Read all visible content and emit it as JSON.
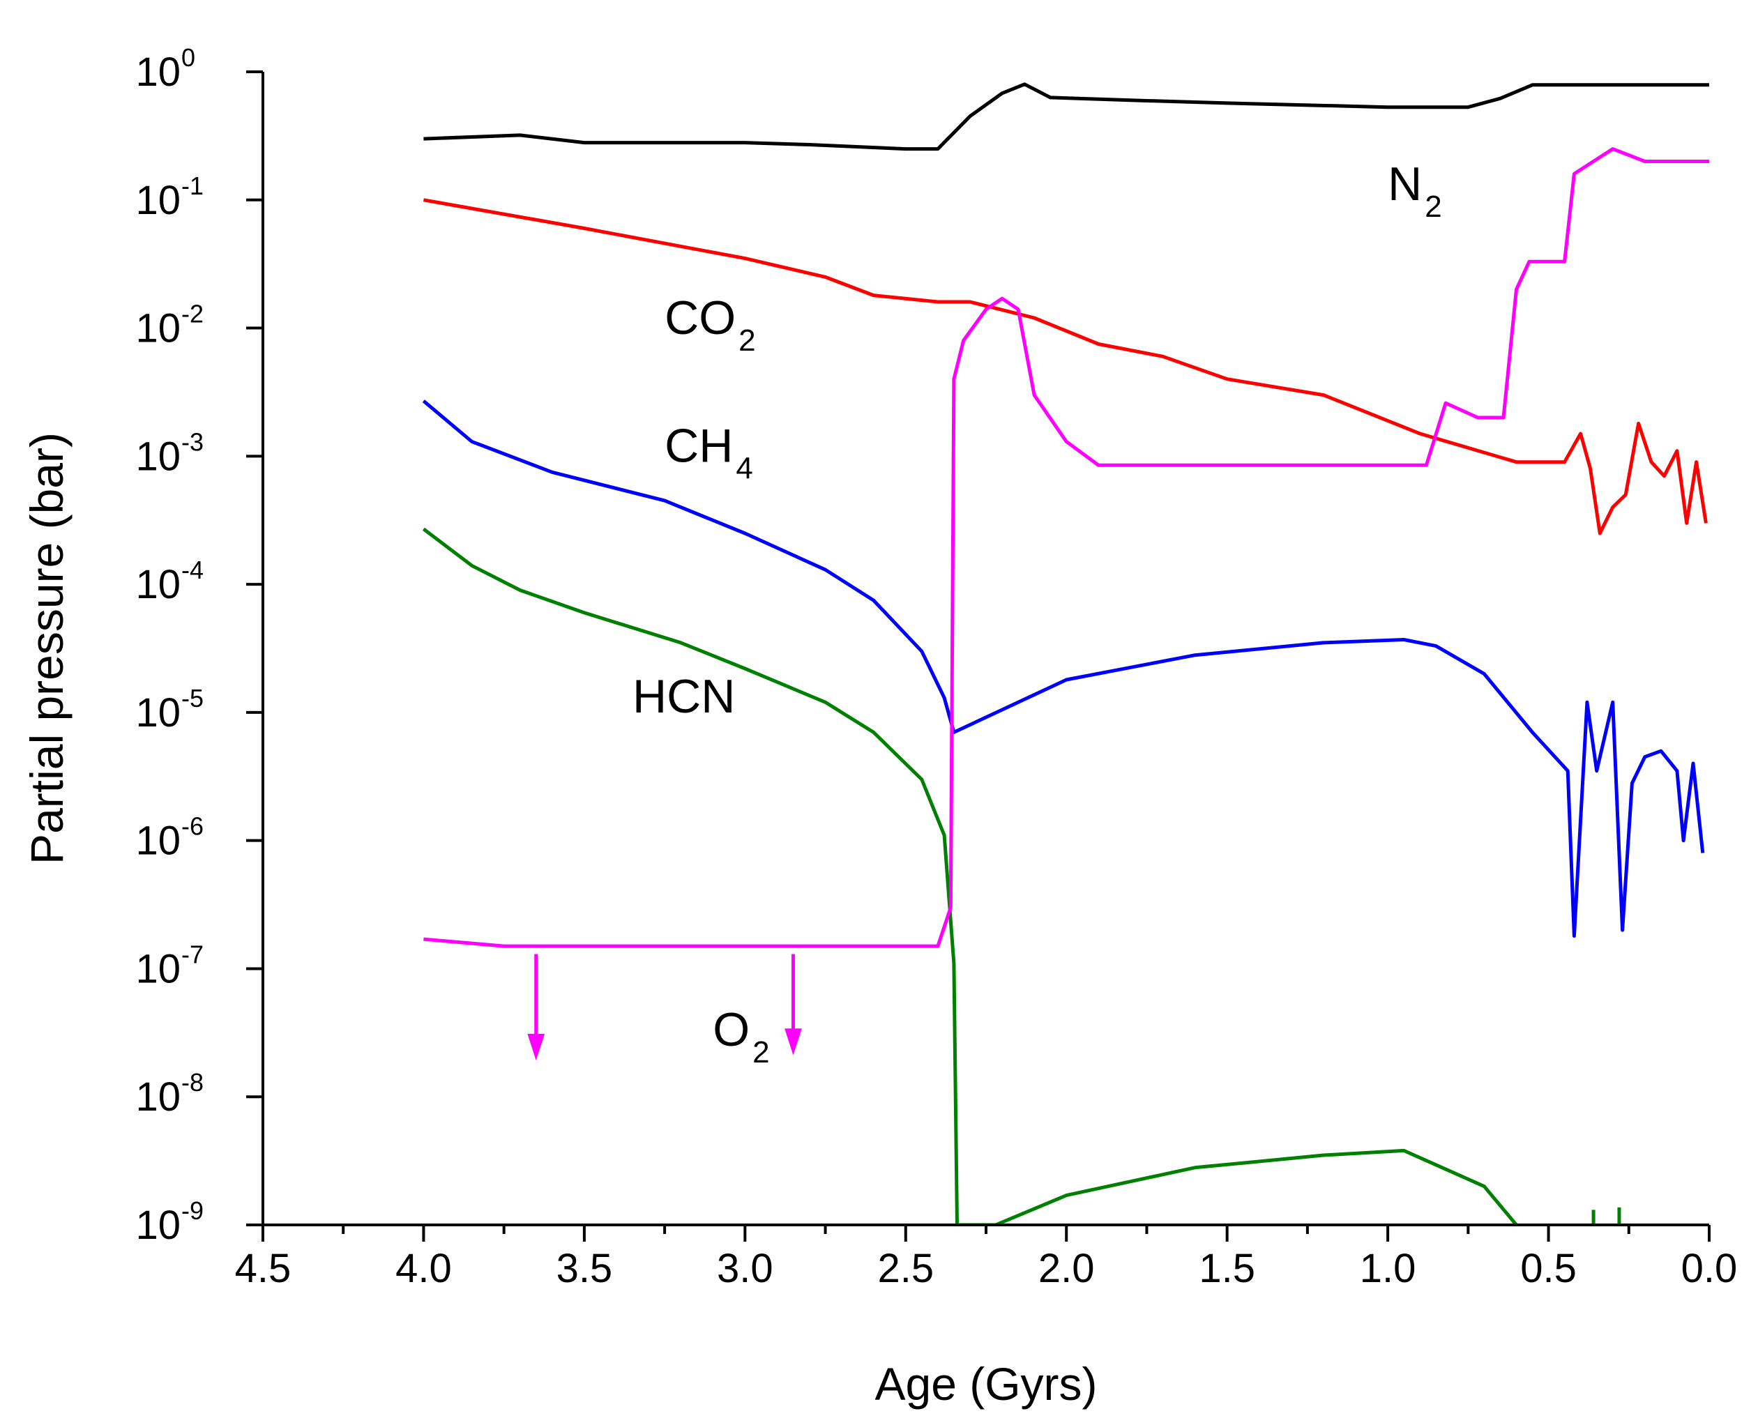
{
  "chart_data": {
    "type": "line",
    "title": "",
    "xlabel": "Age (Gyrs)",
    "ylabel": "Partial pressure (bar)",
    "xlim": [
      4.5,
      0.0
    ],
    "ylim": [
      1e-09,
      1
    ],
    "yscale": "log",
    "grid": false,
    "x_ticks": [
      {
        "value": 4.5,
        "label": "4.5"
      },
      {
        "value": 4.0,
        "label": "4.0"
      },
      {
        "value": 3.5,
        "label": "3.5"
      },
      {
        "value": 3.0,
        "label": "3.0"
      },
      {
        "value": 2.5,
        "label": "2.5"
      },
      {
        "value": 2.0,
        "label": "2.0"
      },
      {
        "value": 1.5,
        "label": "1.5"
      },
      {
        "value": 1.0,
        "label": "1.0"
      },
      {
        "value": 0.5,
        "label": "0.5"
      },
      {
        "value": 0.0,
        "label": "0.0"
      }
    ],
    "y_ticks": [
      {
        "exp": 0,
        "base": "10",
        "exponent": "0"
      },
      {
        "exp": -1,
        "base": "10",
        "exponent": "-1"
      },
      {
        "exp": -2,
        "base": "10",
        "exponent": "-2"
      },
      {
        "exp": -3,
        "base": "10",
        "exponent": "-3"
      },
      {
        "exp": -4,
        "base": "10",
        "exponent": "-4"
      },
      {
        "exp": -5,
        "base": "10",
        "exponent": "-5"
      },
      {
        "exp": -6,
        "base": "10",
        "exponent": "-6"
      },
      {
        "exp": -7,
        "base": "10",
        "exponent": "-7"
      },
      {
        "exp": -8,
        "base": "10",
        "exponent": "-8"
      },
      {
        "exp": -9,
        "base": "10",
        "exponent": "-9"
      }
    ],
    "series": [
      {
        "name": "N2",
        "label_main": "N",
        "label_sub": "2",
        "color": "#000000",
        "label_pos": {
          "x": 1.0,
          "y": 0.1
        },
        "points": [
          [
            4.0,
            0.3
          ],
          [
            3.7,
            0.32
          ],
          [
            3.5,
            0.28
          ],
          [
            3.0,
            0.28
          ],
          [
            2.8,
            0.27
          ],
          [
            2.5,
            0.25
          ],
          [
            2.4,
            0.25
          ],
          [
            2.3,
            0.45
          ],
          [
            2.2,
            0.68
          ],
          [
            2.13,
            0.8
          ],
          [
            2.05,
            0.63
          ],
          [
            1.8,
            0.6
          ],
          [
            1.5,
            0.57
          ],
          [
            1.0,
            0.53
          ],
          [
            0.75,
            0.53
          ],
          [
            0.65,
            0.62
          ],
          [
            0.55,
            0.79
          ],
          [
            0.0,
            0.79
          ]
        ]
      },
      {
        "name": "CO2",
        "label_main": "CO",
        "label_sub": "2",
        "color": "#ff0000",
        "label_pos": {
          "x": 3.25,
          "y": 0.009
        },
        "points": [
          [
            4.0,
            0.1
          ],
          [
            3.5,
            0.06
          ],
          [
            3.0,
            0.035
          ],
          [
            2.75,
            0.025
          ],
          [
            2.6,
            0.018
          ],
          [
            2.4,
            0.016
          ],
          [
            2.3,
            0.016
          ],
          [
            2.1,
            0.012
          ],
          [
            1.9,
            0.0075
          ],
          [
            1.7,
            0.006
          ],
          [
            1.5,
            0.004
          ],
          [
            1.2,
            0.003
          ],
          [
            0.9,
            0.0015
          ],
          [
            0.6,
            0.0009
          ],
          [
            0.45,
            0.0009
          ],
          [
            0.4,
            0.0015
          ],
          [
            0.37,
            0.0008
          ],
          [
            0.34,
            0.00025
          ],
          [
            0.3,
            0.0004
          ],
          [
            0.26,
            0.0005
          ],
          [
            0.22,
            0.0018
          ],
          [
            0.18,
            0.0009
          ],
          [
            0.14,
            0.0007
          ],
          [
            0.1,
            0.0011
          ],
          [
            0.07,
            0.0003
          ],
          [
            0.04,
            0.0009
          ],
          [
            0.01,
            0.0003
          ]
        ]
      },
      {
        "name": "CH4",
        "label_main": "CH",
        "label_sub": "4",
        "color": "#0000ff",
        "label_pos": {
          "x": 3.25,
          "y": 0.0009
        },
        "points": [
          [
            4.0,
            0.0027
          ],
          [
            3.85,
            0.0013
          ],
          [
            3.6,
            0.00075
          ],
          [
            3.25,
            0.00045
          ],
          [
            3.0,
            0.00025
          ],
          [
            2.75,
            0.00013
          ],
          [
            2.6,
            7.5e-05
          ],
          [
            2.45,
            3e-05
          ],
          [
            2.38,
            1.3e-05
          ],
          [
            2.35,
            7e-06
          ],
          [
            2.0,
            1.8e-05
          ],
          [
            1.6,
            2.8e-05
          ],
          [
            1.2,
            3.5e-05
          ],
          [
            0.95,
            3.7e-05
          ],
          [
            0.85,
            3.3e-05
          ],
          [
            0.7,
            2e-05
          ],
          [
            0.55,
            7e-06
          ],
          [
            0.44,
            3.5e-06
          ],
          [
            0.42,
            1.8e-07
          ],
          [
            0.38,
            1.2e-05
          ],
          [
            0.35,
            3.5e-06
          ],
          [
            0.3,
            1.2e-05
          ],
          [
            0.27,
            2e-07
          ],
          [
            0.24,
            2.8e-06
          ],
          [
            0.2,
            4.5e-06
          ],
          [
            0.15,
            5e-06
          ],
          [
            0.1,
            3.5e-06
          ],
          [
            0.08,
            1e-06
          ],
          [
            0.05,
            4e-06
          ],
          [
            0.02,
            8e-07
          ]
        ]
      },
      {
        "name": "HCN",
        "label_main": "HCN",
        "label_sub": "",
        "color": "#008000",
        "label_pos": {
          "x": 3.35,
          "y": 1e-05
        },
        "points": [
          [
            4.0,
            0.00027
          ],
          [
            3.85,
            0.00014
          ],
          [
            3.7,
            9e-05
          ],
          [
            3.5,
            6e-05
          ],
          [
            3.2,
            3.5e-05
          ],
          [
            3.0,
            2.2e-05
          ],
          [
            2.75,
            1.2e-05
          ],
          [
            2.6,
            7e-06
          ],
          [
            2.45,
            3e-06
          ],
          [
            2.38,
            1.1e-06
          ],
          [
            2.35,
            1.1e-07
          ],
          [
            2.34,
            1e-09
          ],
          [
            2.22,
            1e-09
          ],
          [
            2.0,
            1.7e-09
          ],
          [
            1.6,
            2.8e-09
          ],
          [
            1.2,
            3.5e-09
          ],
          [
            0.95,
            3.8e-09
          ],
          [
            0.7,
            2e-09
          ],
          [
            0.6,
            1e-09
          ]
        ]
      },
      {
        "name": "O2",
        "label_main": "O",
        "label_sub": "2",
        "color": "#ff00ff",
        "label_pos": {
          "x": 3.1,
          "y": 2.5e-08
        },
        "points": [
          [
            4.0,
            1.7e-07
          ],
          [
            3.75,
            1.5e-07
          ],
          [
            2.4,
            1.5e-07
          ],
          [
            2.36,
            3e-07
          ],
          [
            2.35,
            0.004
          ],
          [
            2.32,
            0.008
          ],
          [
            2.25,
            0.014
          ],
          [
            2.2,
            0.017
          ],
          [
            2.15,
            0.014
          ],
          [
            2.1,
            0.003
          ],
          [
            2.0,
            0.0013
          ],
          [
            1.9,
            0.00085
          ],
          [
            1.75,
            0.00085
          ],
          [
            1.0,
            0.00085
          ],
          [
            0.88,
            0.00085
          ],
          [
            0.82,
            0.0026
          ],
          [
            0.72,
            0.002
          ],
          [
            0.64,
            0.002
          ],
          [
            0.6,
            0.02
          ],
          [
            0.56,
            0.033
          ],
          [
            0.45,
            0.033
          ],
          [
            0.42,
            0.16
          ],
          [
            0.3,
            0.25
          ],
          [
            0.2,
            0.2
          ],
          [
            0.0,
            0.2
          ]
        ]
      }
    ],
    "annotations": [
      {
        "type": "upper-limit-arrow",
        "x": 3.65,
        "from_y": 1.3e-07,
        "to_y": 2e-08,
        "color": "#ff00ff"
      },
      {
        "type": "upper-limit-arrow",
        "x": 2.85,
        "from_y": 1.3e-07,
        "to_y": 2.2e-08,
        "color": "#ff00ff"
      }
    ],
    "tail_marks": [
      {
        "x": 0.36,
        "from_y": 1e-09,
        "to_y": 1.1e-09,
        "color": "#008000"
      },
      {
        "x": 0.28,
        "from_y": 1e-09,
        "to_y": 1.15e-09,
        "color": "#008000"
      }
    ]
  }
}
